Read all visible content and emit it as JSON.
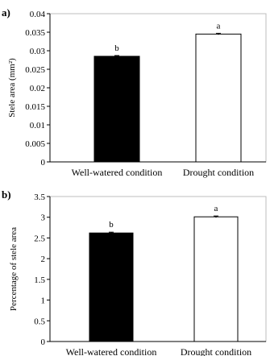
{
  "chart_data": [
    {
      "panel_label": "a)",
      "type": "bar",
      "categories": [
        "Well-watered condition",
        "Drought condition"
      ],
      "values": [
        0.0285,
        0.0345
      ],
      "errors": [
        0.0002,
        0.0002
      ],
      "significance": [
        "b",
        "a"
      ],
      "bar_fills": [
        "#000000",
        "#ffffff"
      ],
      "ylabel": "Stele area (mm²)",
      "xlabel": "",
      "ylim": [
        0,
        0.04
      ],
      "yticks": [
        0,
        0.005,
        0.01,
        0.015,
        0.02,
        0.025,
        0.03,
        0.035,
        0.04
      ],
      "ytick_labels": [
        "0",
        "0.005",
        "0.01",
        "0.015",
        "0.02",
        "0.025",
        "0.03",
        "0.035",
        "0.04"
      ],
      "grid": false
    },
    {
      "panel_label": "b)",
      "type": "bar",
      "categories": [
        "Well-watered condition",
        "Drought condition"
      ],
      "values": [
        2.62,
        3.01
      ],
      "errors": [
        0.02,
        0.02
      ],
      "significance": [
        "b",
        "a"
      ],
      "bar_fills": [
        "#000000",
        "#ffffff"
      ],
      "ylabel": "Percentage of stele area",
      "xlabel": "",
      "ylim": [
        0,
        3.5
      ],
      "yticks": [
        0,
        0.5,
        1,
        1.5,
        2,
        2.5,
        3,
        3.5
      ],
      "ytick_labels": [
        "0",
        "0.5",
        "1",
        "1.5",
        "2",
        "2.5",
        "3",
        "3.5"
      ],
      "grid": false
    }
  ]
}
